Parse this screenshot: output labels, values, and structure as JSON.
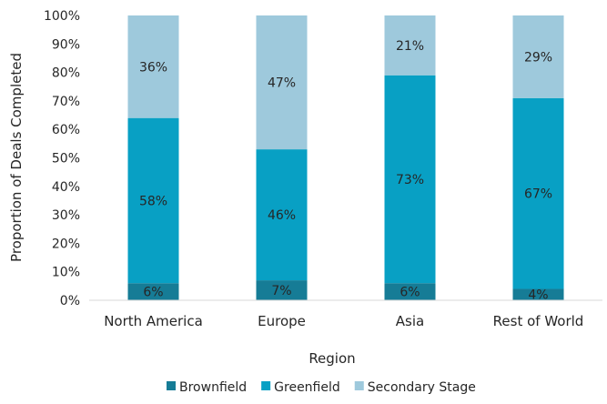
{
  "chart_data": {
    "type": "bar",
    "stacked": true,
    "percent_stacked": true,
    "categories": [
      "North America",
      "Europe",
      "Asia",
      "Rest of World"
    ],
    "series": [
      {
        "name": "Brownfield",
        "color": "#167c96",
        "values": [
          6,
          7,
          6,
          4
        ],
        "labels": [
          "6%",
          "7%",
          "6%",
          "4%"
        ]
      },
      {
        "name": "Greenfield",
        "color": "#08a0c4",
        "values": [
          58,
          46,
          73,
          67
        ],
        "labels": [
          "58%",
          "46%",
          "73%",
          "67%"
        ]
      },
      {
        "name": "Secondary Stage",
        "color": "#9ec9dc",
        "values": [
          36,
          47,
          21,
          29
        ],
        "labels": [
          "36%",
          "47%",
          "21%",
          "29%"
        ]
      }
    ],
    "xlabel": "Region",
    "ylabel": "Proportion of Deals Completed",
    "ylim": [
      0,
      100
    ],
    "yticks": [
      "0%",
      "10%",
      "20%",
      "30%",
      "40%",
      "50%",
      "60%",
      "70%",
      "80%",
      "90%",
      "100%"
    ],
    "grid": false,
    "legend": "bottom"
  }
}
